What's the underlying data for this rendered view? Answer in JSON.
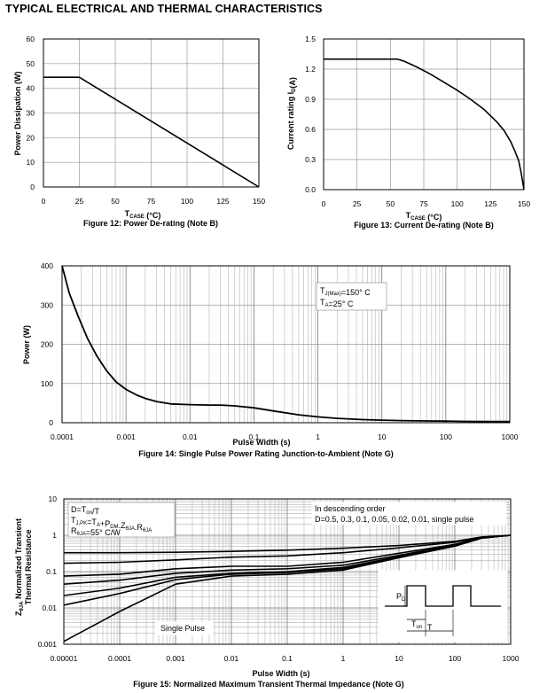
{
  "page_title": "TYPICAL ELECTRICAL AND THERMAL CHARACTERISTICS",
  "chart_data": [
    {
      "id": "fig12",
      "type": "line",
      "caption": "Figure 12: Power De-rating (Note B)",
      "xlabel_main": "T",
      "xlabel_sub": "CASE",
      "xlabel_unit": " (°C)",
      "ylabel": "Power Dissipation (W)",
      "xlim": [
        0,
        150
      ],
      "ylim": [
        0,
        60
      ],
      "xticks": [
        0,
        25,
        50,
        75,
        100,
        125,
        150
      ],
      "yticks": [
        0,
        10,
        20,
        30,
        40,
        50,
        60
      ],
      "grid": true,
      "series": [
        {
          "name": "Power Dissipation",
          "x": [
            0,
            25,
            150
          ],
          "y": [
            44.5,
            44.5,
            0
          ]
        }
      ]
    },
    {
      "id": "fig13",
      "type": "line",
      "caption": "Figure 13: Current De-rating (Note B)",
      "xlabel_main": "T",
      "xlabel_sub": "CASE",
      "xlabel_unit": " (°C)",
      "ylabel_main": "Current rating I",
      "ylabel_sub": "D",
      "ylabel_unit": "(A)",
      "xlim": [
        0,
        150
      ],
      "ylim": [
        0,
        1.5
      ],
      "xticks": [
        0,
        25,
        50,
        75,
        100,
        125,
        150
      ],
      "yticks": [
        0.0,
        0.3,
        0.6,
        0.9,
        1.2,
        1.5
      ],
      "ytick_labels": [
        "0.0",
        "0.3",
        "0.6",
        "0.9",
        "1.2",
        "1.5"
      ],
      "grid": true,
      "series": [
        {
          "name": "Current rating",
          "x": [
            0,
            55,
            60,
            70,
            80,
            90,
            100,
            110,
            120,
            130,
            135,
            140,
            143,
            146,
            148,
            150
          ],
          "y": [
            1.3,
            1.3,
            1.28,
            1.22,
            1.15,
            1.07,
            0.99,
            0.9,
            0.8,
            0.67,
            0.59,
            0.48,
            0.39,
            0.29,
            0.16,
            0.0
          ]
        }
      ]
    },
    {
      "id": "fig14",
      "type": "line",
      "caption": "Figure 14: Single Pulse Power Rating Junction-to-Ambient (Note G)",
      "xlabel": "Pulse Width (s)",
      "ylabel": "Power (W)",
      "xscale": "log",
      "xlim": [
        0.0001,
        1000
      ],
      "ylim": [
        0,
        400
      ],
      "xticks": [
        0.0001,
        0.001,
        0.01,
        0.1,
        1,
        10,
        100,
        1000
      ],
      "xtick_labels": [
        "0.0001",
        "0.001",
        "0.01",
        "0.1",
        "1",
        "10",
        "100",
        "1000"
      ],
      "yticks": [
        0,
        100,
        200,
        300,
        400
      ],
      "grid": true,
      "legend": {
        "tj_main": "T",
        "tj_sub": "J(Max)",
        "tj_val": "=150° C",
        "ta_main": "T",
        "ta_sub": "A",
        "ta_val": "=25° C"
      },
      "series": [
        {
          "name": "Power",
          "x": [
            0.0001,
            0.00013,
            0.00018,
            0.00025,
            0.00035,
            0.0005,
            0.0007,
            0.001,
            0.0015,
            0.002,
            0.003,
            0.005,
            0.01,
            0.02,
            0.03,
            0.05,
            0.1,
            0.2,
            0.5,
            1,
            2,
            5,
            10,
            20,
            50,
            100,
            200,
            500,
            1000
          ],
          "y": [
            400,
            330,
            270,
            215,
            170,
            132,
            104,
            85,
            70,
            62,
            54,
            48,
            46,
            45,
            45,
            43,
            38,
            30,
            20,
            15,
            11,
            8,
            6.5,
            5.5,
            4.5,
            4,
            3.5,
            3,
            3
          ]
        }
      ]
    },
    {
      "id": "fig15",
      "type": "line",
      "caption": "Figure 15: Normalized Maximum Transient Thermal Impedance (Note G)",
      "xlabel": "Pulse Width (s)",
      "ylabel_line1_main": "Z",
      "ylabel_line1_sub": "θJA",
      "ylabel_line1_rest": " Normalized Transient",
      "ylabel_line2": "Thermal Resistance",
      "xscale": "log",
      "yscale": "log",
      "xlim": [
        1e-05,
        1000
      ],
      "ylim": [
        0.001,
        10
      ],
      "xticks": [
        1e-05,
        0.0001,
        0.001,
        0.01,
        0.1,
        1,
        10,
        100,
        1000
      ],
      "xtick_labels": [
        "0.00001",
        "0.0001",
        "0.001",
        "0.01",
        "0.1",
        "1",
        "10",
        "100",
        "1000"
      ],
      "yticks": [
        0.001,
        0.01,
        0.1,
        1,
        10
      ],
      "ytick_labels": [
        "0.001",
        "0.01",
        "0.1",
        "1",
        "10"
      ],
      "grid": true,
      "annotations": {
        "eq_d_main": "D=T",
        "eq_d_sub": "on",
        "eq_d_rest": "/T",
        "eq_tj_parts": [
          "T",
          "J,PK",
          "=T",
          "A",
          "+P",
          "DM",
          ".Z",
          "θJA",
          ".R",
          "θJA"
        ],
        "eq_r_main": "R",
        "eq_r_sub": "θJA",
        "eq_r_rest": "=55° C/W",
        "order_line1": "In descending order",
        "order_line2": "D=0.5, 0.3, 0.1, 0.05, 0.02, 0.01, single pulse",
        "single_pulse": "Single Pulse",
        "pd_main": "P",
        "pd_sub": "D",
        "ton_main": "T",
        "ton_sub": "on",
        "t_label": "T"
      },
      "series": [
        {
          "name": "D=0.5",
          "y": [
            0.33,
            0.33,
            0.34,
            0.36,
            0.39,
            0.44,
            0.52,
            0.68,
            0.9,
            1.0
          ]
        },
        {
          "name": "D=0.3",
          "y": [
            0.17,
            0.18,
            0.21,
            0.25,
            0.27,
            0.33,
            0.45,
            0.64,
            0.88,
            1.0
          ]
        },
        {
          "name": "D=0.1",
          "y": [
            0.075,
            0.085,
            0.12,
            0.14,
            0.14,
            0.18,
            0.32,
            0.56,
            0.86,
            1.0
          ]
        },
        {
          "name": "D=0.05",
          "y": [
            0.045,
            0.058,
            0.09,
            0.11,
            0.12,
            0.15,
            0.28,
            0.54,
            0.85,
            1.0
          ]
        },
        {
          "name": "D=0.02",
          "y": [
            0.022,
            0.035,
            0.07,
            0.09,
            0.1,
            0.13,
            0.26,
            0.52,
            0.84,
            1.0
          ]
        },
        {
          "name": "D=0.01",
          "y": [
            0.012,
            0.025,
            0.06,
            0.085,
            0.095,
            0.12,
            0.25,
            0.51,
            0.84,
            1.0
          ]
        },
        {
          "name": "Single Pulse",
          "y": [
            0.0012,
            0.008,
            0.045,
            0.075,
            0.085,
            0.11,
            0.24,
            0.5,
            0.83,
            1.0
          ]
        }
      ],
      "x": [
        1e-05,
        0.0001,
        0.001,
        0.01,
        0.1,
        1,
        10,
        100,
        300,
        1000
      ]
    }
  ]
}
